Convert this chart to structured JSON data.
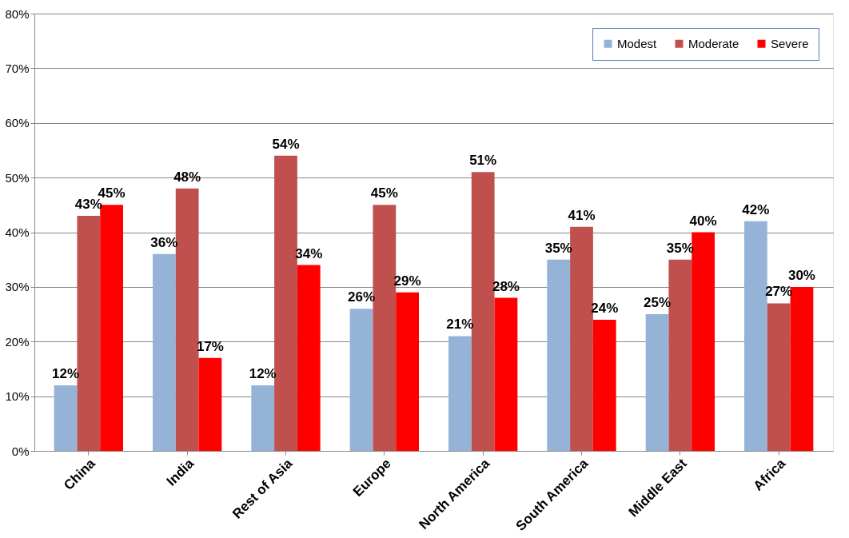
{
  "chart_data": {
    "type": "bar",
    "categories": [
      "China",
      "India",
      "Rest of Asia",
      "Europe",
      "North America",
      "South America",
      "Middle East",
      "Africa"
    ],
    "series": [
      {
        "name": "Modest",
        "color": "#95b3d7",
        "values": [
          12,
          36,
          12,
          26,
          21,
          35,
          25,
          42
        ],
        "value_labels": [
          "12%",
          "36%",
          "12%",
          "26%",
          "21%",
          "35%",
          "25%",
          "42%"
        ]
      },
      {
        "name": "Moderate",
        "color": "#c0504d",
        "values": [
          43,
          48,
          54,
          45,
          51,
          41,
          35,
          27
        ],
        "value_labels": [
          "43%",
          "48%",
          "54%",
          "45%",
          "51%",
          "41%",
          "35%",
          "27%"
        ]
      },
      {
        "name": "Severe",
        "color": "#ff0000",
        "values": [
          45,
          17,
          34,
          29,
          28,
          24,
          40,
          30
        ],
        "value_labels": [
          "45%",
          "17%",
          "34%",
          "29%",
          "28%",
          "24%",
          "40%",
          "30%"
        ]
      }
    ],
    "ylim": [
      0,
      80
    ],
    "yticks": [
      {
        "value": 0,
        "label": "0%"
      },
      {
        "value": 10,
        "label": "10%"
      },
      {
        "value": 20,
        "label": "20%"
      },
      {
        "value": 30,
        "label": "30%"
      },
      {
        "value": 40,
        "label": "40%"
      },
      {
        "value": 50,
        "label": "50%"
      },
      {
        "value": 60,
        "label": "60%"
      },
      {
        "value": 70,
        "label": "70%"
      },
      {
        "value": 80,
        "label": "80%"
      }
    ],
    "grid": "y",
    "legend": "top right"
  }
}
